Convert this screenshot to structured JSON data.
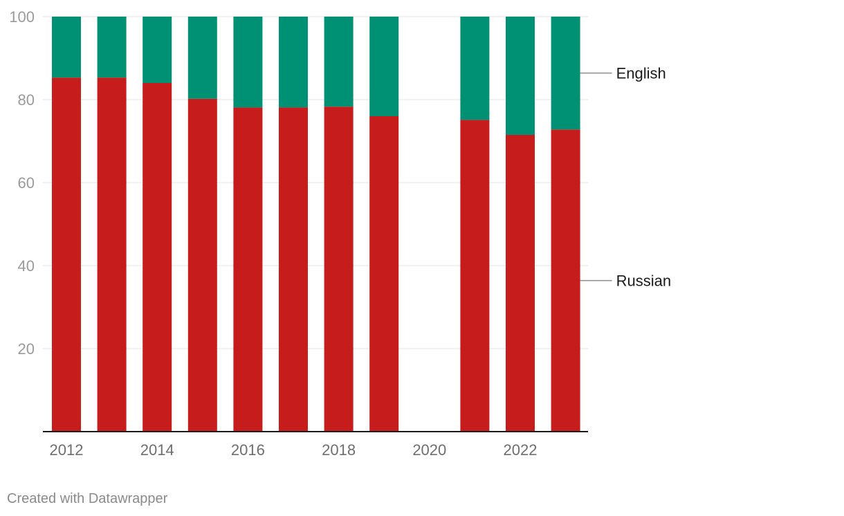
{
  "chart_data": {
    "type": "bar",
    "stacked": true,
    "categories": [
      "2012",
      "2013",
      "2014",
      "2015",
      "2016",
      "2017",
      "2018",
      "2019",
      "2020",
      "2021",
      "2022",
      "2023"
    ],
    "x_tick_labels": [
      "2012",
      "2014",
      "2016",
      "2018",
      "2020",
      "2022"
    ],
    "y_ticks": [
      20,
      40,
      60,
      80,
      100
    ],
    "ylim": [
      0,
      100
    ],
    "grid": true,
    "legend_placement": "right, inline labels",
    "series": [
      {
        "name": "Russian",
        "color": "#c71c1c",
        "values": [
          85.3,
          85.3,
          84.0,
          80.2,
          78.1,
          78.1,
          78.3,
          76.0,
          null,
          75.1,
          71.5,
          72.8
        ]
      },
      {
        "name": "English",
        "color": "#009174",
        "values": [
          14.7,
          14.7,
          16.0,
          19.8,
          21.9,
          21.9,
          21.7,
          24.0,
          null,
          24.9,
          28.5,
          27.2
        ]
      }
    ]
  },
  "footer": {
    "credit": "Created with Datawrapper"
  }
}
